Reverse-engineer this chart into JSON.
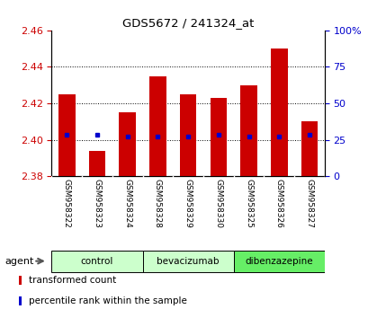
{
  "title": "GDS5672 / 241324_at",
  "samples": [
    "GSM958322",
    "GSM958323",
    "GSM958324",
    "GSM958328",
    "GSM958329",
    "GSM958330",
    "GSM958325",
    "GSM958326",
    "GSM958327"
  ],
  "bar_values": [
    2.425,
    2.394,
    2.415,
    2.435,
    2.425,
    2.423,
    2.43,
    2.45,
    2.41
  ],
  "blue_values": [
    2.403,
    2.403,
    2.402,
    2.402,
    2.402,
    2.403,
    2.402,
    2.402,
    2.403
  ],
  "ymin": 2.38,
  "ymax": 2.46,
  "yticks_left": [
    2.38,
    2.4,
    2.42,
    2.44,
    2.46
  ],
  "yticks_right": [
    0,
    25,
    50,
    75,
    100
  ],
  "ytick_right_labels": [
    "0",
    "25",
    "50",
    "75",
    "100%"
  ],
  "bar_color": "#cc0000",
  "blue_color": "#0000cc",
  "agent_label": "agent",
  "legend_red": "transformed count",
  "legend_blue": "percentile rank within the sample",
  "tick_label_color_left": "#cc0000",
  "tick_label_color_right": "#0000cc",
  "bg_plot": "#ffffff",
  "bg_xtick": "#cccccc",
  "group_configs": [
    {
      "label": "control",
      "start": 0,
      "end": 2,
      "color": "#ccffcc"
    },
    {
      "label": "bevacizumab",
      "start": 3,
      "end": 5,
      "color": "#ccffcc"
    },
    {
      "label": "dibenzazepine",
      "start": 6,
      "end": 8,
      "color": "#66ee66"
    }
  ],
  "bar_width": 0.55
}
